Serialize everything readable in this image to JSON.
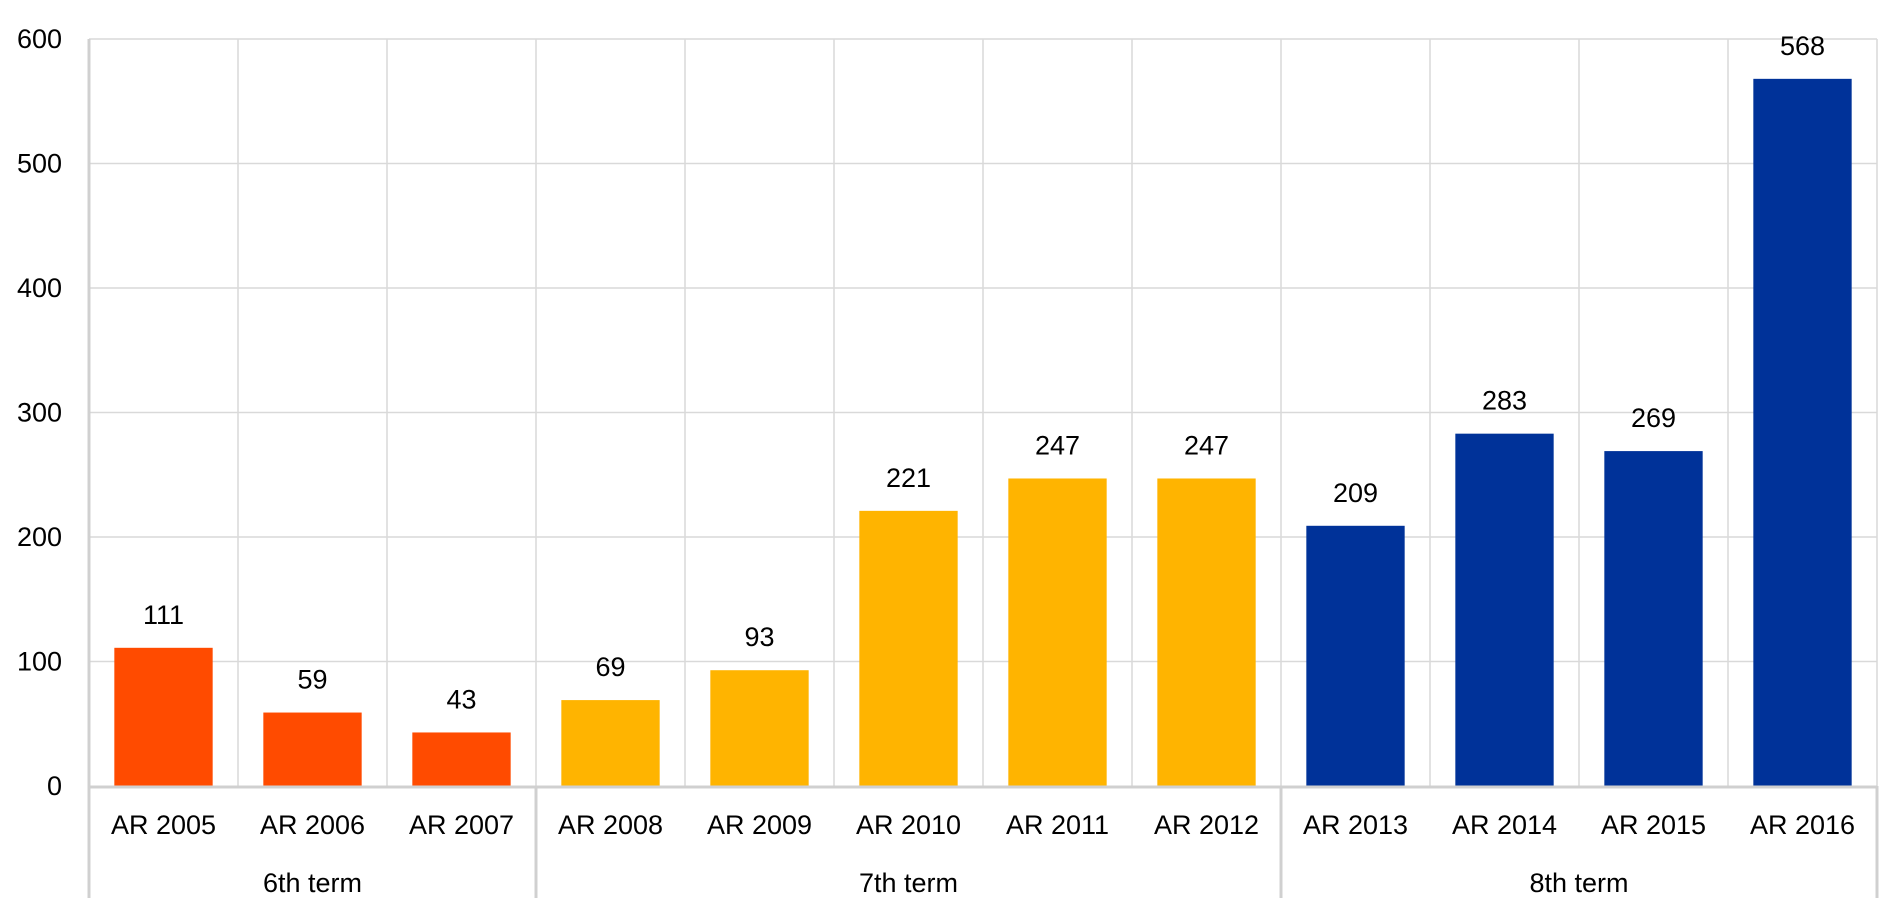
{
  "chart_data": {
    "type": "bar",
    "title": "",
    "xlabel": "",
    "ylabel": "",
    "ylim": [
      0,
      600
    ],
    "yticks": [
      0,
      100,
      200,
      300,
      400,
      500,
      600
    ],
    "grid": true,
    "categories": [
      "AR 2005",
      "AR 2006",
      "AR 2007",
      "AR 2008",
      "AR 2009",
      "AR 2010",
      "AR 2011",
      "AR 2012",
      "AR 2013",
      "AR 2014",
      "AR 2015",
      "AR 2016"
    ],
    "values": [
      111,
      59,
      43,
      69,
      93,
      221,
      247,
      247,
      209,
      283,
      269,
      568
    ],
    "groups": [
      {
        "label": "6th term",
        "count": 3,
        "color": "#FF4B00"
      },
      {
        "label": "7th term",
        "count": 5,
        "color": "#FFB400"
      },
      {
        "label": "8th term",
        "count": 4,
        "color": "#003299"
      }
    ],
    "data_labels": true
  }
}
